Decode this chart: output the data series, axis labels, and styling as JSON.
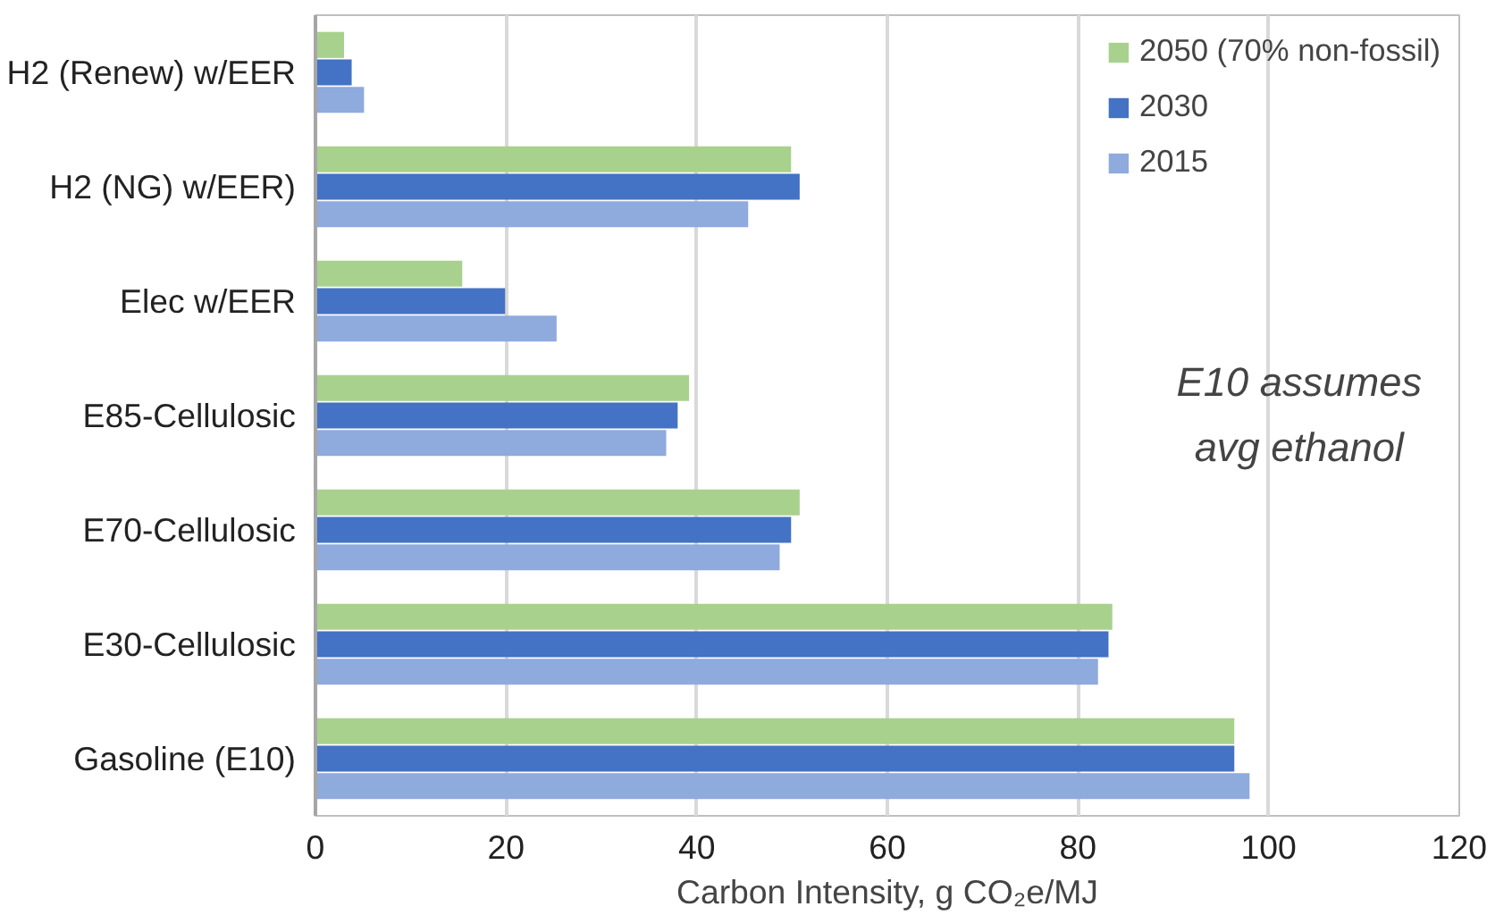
{
  "chart_data": {
    "type": "bar",
    "orientation": "horizontal",
    "xlabel": "Carbon Intensity, g CO₂e/MJ",
    "categories": [
      "H2 (Renew) w/EER",
      "H2 (NG) w/EER)",
      "Elec w/EER",
      "E85-Cellulosic",
      "E70-Cellulosic",
      "E30-Cellulosic",
      "Gasoline (E10)"
    ],
    "series": [
      {
        "name": "2050 (70% non-fossil)",
        "color": "#a9d18e",
        "values": [
          3.0,
          49.9,
          15.4,
          39.2,
          50.8,
          83.6,
          96.4
        ]
      },
      {
        "name": "2030",
        "color": "#4472c4",
        "values": [
          3.8,
          50.8,
          19.9,
          38.0,
          49.9,
          83.2,
          96.4
        ]
      },
      {
        "name": "2015",
        "color": "#8faadc",
        "values": [
          5.1,
          45.4,
          25.3,
          36.8,
          48.7,
          82.1,
          98.0
        ]
      }
    ],
    "xlim": [
      0,
      120
    ],
    "xticks": [
      0,
      20,
      40,
      60,
      80,
      100,
      120
    ],
    "grid": "x",
    "legend": "top right",
    "annotations": [
      "E10 assumes\navg ethanol"
    ]
  }
}
